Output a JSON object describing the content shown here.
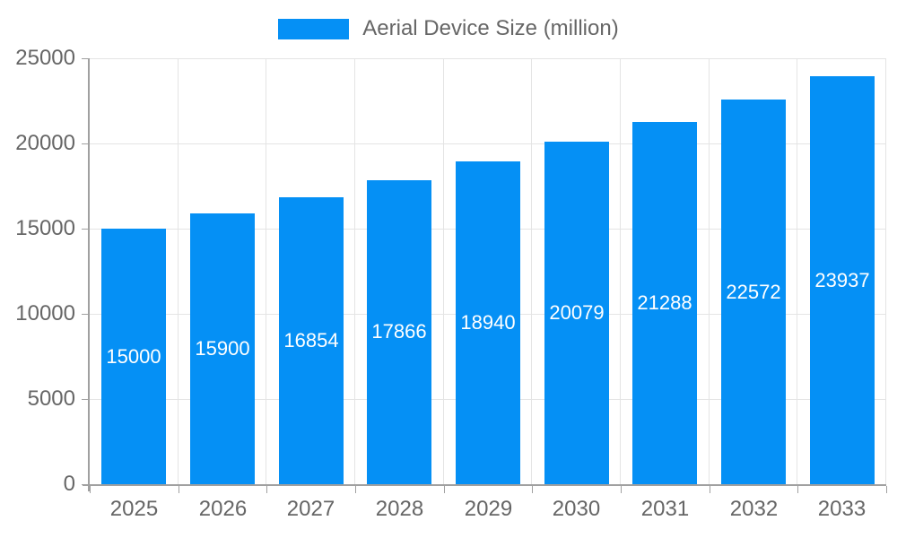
{
  "chart_data": {
    "type": "bar",
    "title": "",
    "categories": [
      "2025",
      "2026",
      "2027",
      "2028",
      "2029",
      "2030",
      "2031",
      "2032",
      "2033"
    ],
    "series": [
      {
        "name": "Aerial Device Size (million)",
        "values": [
          15000,
          15900,
          16854,
          17866,
          18940,
          20079,
          21288,
          22572,
          23937
        ]
      }
    ],
    "bar_value_labels": [
      "15000",
      "15900",
      "16854",
      "17866",
      "18940",
      "20079",
      "21288",
      "22572",
      "23937"
    ],
    "xlabel": "",
    "ylabel": "",
    "ylim": [
      0,
      25000
    ],
    "yticks": [
      0,
      5000,
      10000,
      15000,
      20000,
      25000
    ],
    "ytick_labels": [
      "0",
      "5000",
      "10000",
      "15000",
      "20000",
      "25000"
    ],
    "grid": true,
    "legend_position": "top-center",
    "colors": {
      "bar": "#0590f5",
      "bar_label_text": "#ffffff",
      "axis_text": "#666666",
      "grid_line": "#e4e4e4",
      "axis_line": "#a0a0a0",
      "background": "#ffffff"
    }
  }
}
